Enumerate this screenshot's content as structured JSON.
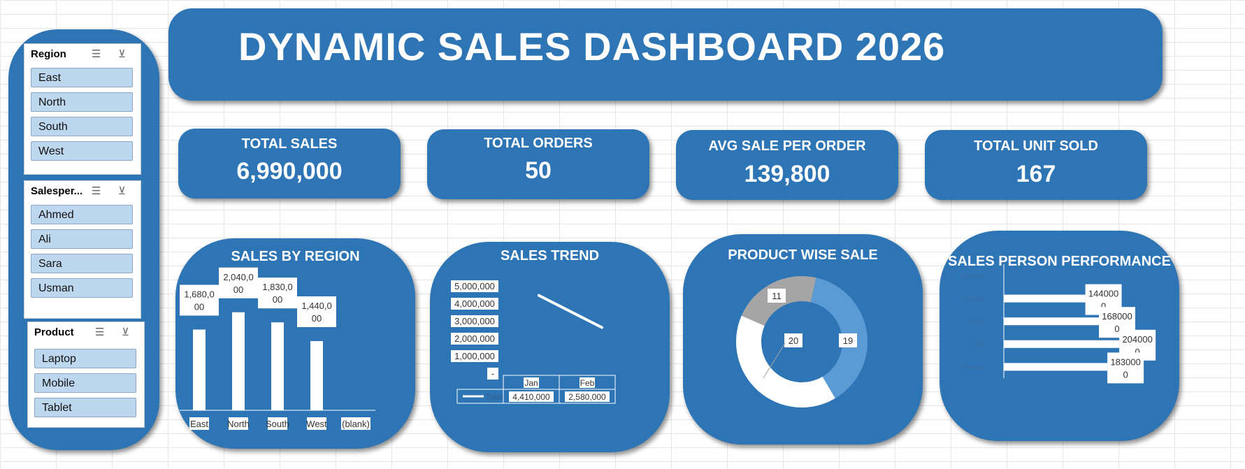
{
  "title": "DYNAMIC SALES DASHBOARD 2026",
  "colors": {
    "panel": "#2e75b6",
    "slicer_item": "#bdd7ee",
    "donut_light": "#5b9bd5",
    "donut_grey": "#a5a5a5",
    "white": "#ffffff"
  },
  "slicers": [
    {
      "header": "Region",
      "items": [
        "East",
        "North",
        "South",
        "West"
      ]
    },
    {
      "header": "Salesper...",
      "items": [
        "Ahmed",
        "Ali",
        "Sara",
        "Usman"
      ]
    },
    {
      "header": "Product",
      "items": [
        "Laptop",
        "Mobile",
        "Tablet"
      ]
    }
  ],
  "slicer_icons": {
    "multiselect": "multi-select-icon",
    "clear": "clear-filter-icon"
  },
  "kpis": [
    {
      "label": "TOTAL SALES",
      "value": "6,990,000"
    },
    {
      "label": "TOTAL ORDERS",
      "value": "50"
    },
    {
      "label": "AVG SALE PER ORDER",
      "value": "139,800"
    },
    {
      "label": "TOTAL UNIT SOLD",
      "value": "167"
    }
  ],
  "chart_data": [
    {
      "type": "bar",
      "title": "SALES BY REGION",
      "categories": [
        "East",
        "North",
        "South",
        "West",
        "(blank)"
      ],
      "values": [
        1680000,
        2040000,
        1830000,
        1440000,
        null
      ],
      "data_labels": [
        [
          "1,680,0",
          "00"
        ],
        [
          "2,040,0",
          "00"
        ],
        [
          "1,830,0",
          "00"
        ],
        [
          "1,440,0",
          "00"
        ],
        null
      ],
      "ylim": [
        0,
        2400000
      ]
    },
    {
      "type": "line",
      "title": "SALES TREND",
      "categories": [
        "Jan",
        "Feb"
      ],
      "series": [
        {
          "name": "Total",
          "values": [
            4410000,
            2580000
          ]
        }
      ],
      "y_ticks": [
        "5,000,000",
        "4,000,000",
        "3,000,000",
        "2,000,000",
        "1,000,000",
        "-"
      ],
      "ylim": [
        0,
        5000000
      ],
      "data_table": {
        "row_label": "Total",
        "cells": [
          "4,410,000",
          "2,580,000"
        ]
      }
    },
    {
      "type": "pie",
      "title": "PRODUCT WISE SALE",
      "values": [
        19,
        20,
        11
      ],
      "data_labels": [
        "19",
        "20",
        "11"
      ],
      "colors": [
        "#5b9bd5",
        "#ffffff",
        "#a5a5a5"
      ]
    },
    {
      "type": "bar",
      "title": "SALES PERSON PERFORMANCE",
      "orientation": "horizontal",
      "categories": [
        "(blank)",
        "Usman",
        "Sara",
        "Ali",
        "Ahmed"
      ],
      "values": [
        null,
        1440000,
        1680000,
        2040000,
        1830000
      ],
      "data_labels": [
        null,
        [
          "144000",
          "0"
        ],
        [
          "168000",
          "0"
        ],
        [
          "204000",
          "0"
        ],
        [
          "183000",
          "0"
        ]
      ],
      "xlim": [
        0,
        2100000
      ]
    }
  ]
}
